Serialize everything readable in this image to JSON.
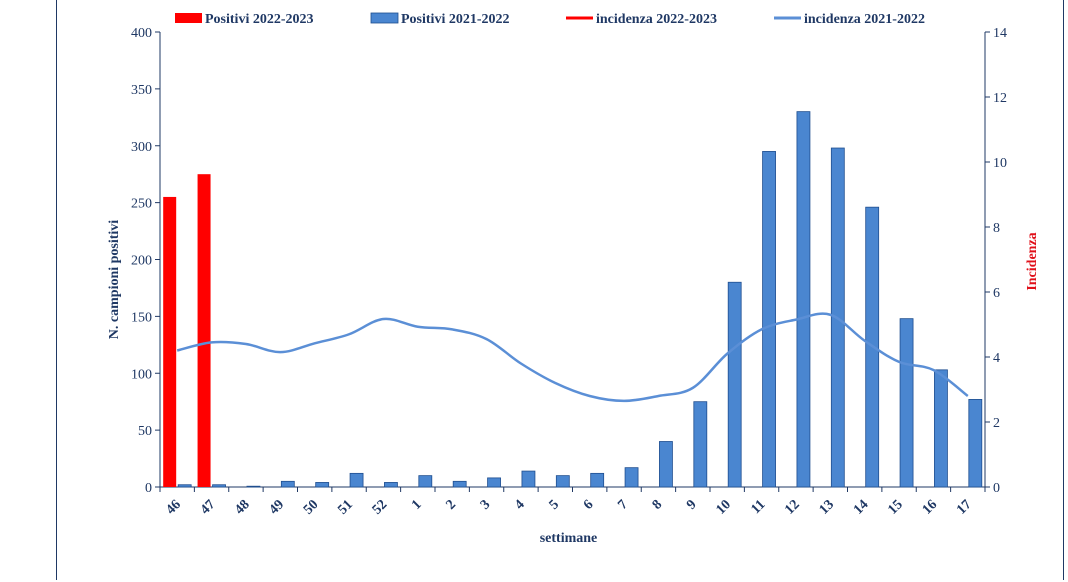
{
  "chart_data": {
    "type": "bar",
    "categories": [
      "46",
      "47",
      "48",
      "49",
      "50",
      "51",
      "52",
      "1",
      "2",
      "3",
      "4",
      "5",
      "6",
      "7",
      "8",
      "9",
      "10",
      "11",
      "12",
      "13",
      "14",
      "15",
      "16",
      "17"
    ],
    "series": [
      {
        "name": "Positivi 2022-2023",
        "type": "bar",
        "axis": "left",
        "color": "#FF0000",
        "values": [
          255,
          275,
          null,
          null,
          null,
          null,
          null,
          null,
          null,
          null,
          null,
          null,
          null,
          null,
          null,
          null,
          null,
          null,
          null,
          null,
          null,
          null,
          null,
          null
        ]
      },
      {
        "name": "Positivi 2021-2022",
        "type": "bar",
        "axis": "left",
        "color": "#4A86D0",
        "values": [
          2,
          2,
          0,
          5,
          4,
          12,
          4,
          10,
          5,
          8,
          14,
          10,
          12,
          17,
          40,
          75,
          180,
          295,
          330,
          298,
          246,
          148,
          103,
          77
        ]
      },
      {
        "name": "incidenza 2022-2023",
        "type": "line",
        "axis": "right",
        "color": "#FF0000",
        "values": [
          null,
          null,
          null,
          null,
          null,
          null,
          null,
          null,
          null,
          null,
          null,
          null,
          null,
          null,
          null,
          null,
          null,
          null,
          null,
          null,
          null,
          null,
          null,
          null
        ]
      },
      {
        "name": "incidenza 2021-2022",
        "type": "line",
        "axis": "right",
        "color": "#5B8FD6",
        "values": [
          4.2,
          4.45,
          4.4,
          4.15,
          4.42,
          4.7,
          5.17,
          4.93,
          4.85,
          4.55,
          3.8,
          3.2,
          2.8,
          2.65,
          2.8,
          3.05,
          4.1,
          4.85,
          5.15,
          5.3,
          4.5,
          3.85,
          3.6,
          2.8
        ]
      }
    ],
    "xlabel": "settimane",
    "ylabel": "N. campioni positivi",
    "y2label": "Incidenza",
    "ylim": [
      0,
      400
    ],
    "y2lim": [
      0,
      14
    ],
    "yticks": [
      0,
      50,
      100,
      150,
      200,
      250,
      300,
      350,
      400
    ],
    "y2ticks": [
      0,
      2,
      4,
      6,
      8,
      10,
      12,
      14
    ],
    "legend_position": "top",
    "grid": false,
    "colors": {
      "axis": "#1F3864",
      "y2label": "#E0101A"
    }
  }
}
